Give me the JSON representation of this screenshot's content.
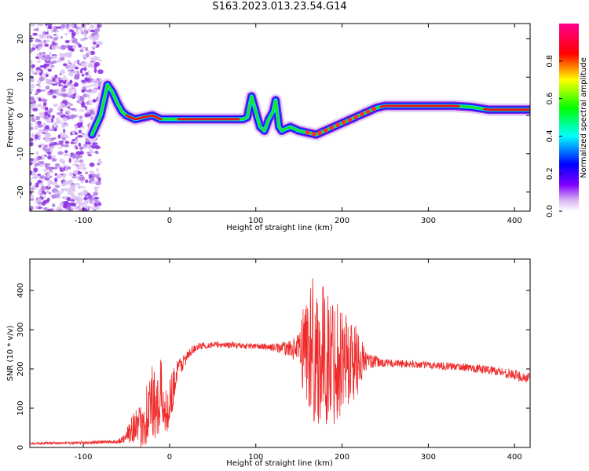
{
  "figure": {
    "title": "S163.2023.013.23.54.G14"
  },
  "chart_data": [
    {
      "type": "heatmap",
      "name": "spectrogram",
      "xlabel": "Height of straight line (km)",
      "ylabel": "Frequency (Hz)",
      "xlim": [
        -162,
        418
      ],
      "ylim": [
        -25,
        24
      ],
      "xticks": [
        -100,
        0,
        100,
        200,
        300,
        400
      ],
      "yticks": [
        -20,
        -10,
        0,
        10,
        20
      ],
      "grid": false,
      "ridge": {
        "x": [
          -90,
          -80,
          -72,
          -66,
          -60,
          -55,
          -50,
          -40,
          -30,
          -20,
          -10,
          0,
          20,
          40,
          60,
          80,
          85,
          90,
          95,
          100,
          105,
          110,
          115,
          120,
          123,
          127,
          130,
          140,
          150,
          160,
          170,
          180,
          190,
          200,
          210,
          220,
          230,
          240,
          250,
          260,
          300,
          330,
          350,
          370,
          418
        ],
        "y": [
          -5,
          0,
          8,
          6,
          3,
          1,
          0,
          -1,
          -0.5,
          0,
          -1,
          -1,
          -1,
          -1,
          -1,
          -1,
          -1,
          -0.5,
          5,
          1,
          -3,
          -4,
          -1,
          1,
          4,
          -3,
          -4,
          -3,
          -4,
          -4.5,
          -5,
          -4,
          -3,
          -2,
          -1,
          0,
          1,
          2,
          2.5,
          2.5,
          2.5,
          2.5,
          2.2,
          1.5,
          1.5
        ]
      },
      "colorbar": {
        "label": "Normalized spectral amplitude",
        "range": [
          0,
          1
        ],
        "ticks": [
          0.0,
          0.2,
          0.4,
          0.6,
          0.8
        ],
        "tick_labels": [
          "0.0",
          "0.2",
          "0.4",
          "0.6",
          "0.8"
        ],
        "colormap": [
          "#ffffff",
          "#d8b0f0",
          "#8000ff",
          "#0000ff",
          "#00ffff",
          "#00ff00",
          "#ffff00",
          "#ff0000",
          "#ff0090"
        ]
      }
    },
    {
      "type": "line",
      "name": "snr",
      "xlabel": "Height of straight line (km)",
      "ylabel": "SNR (10 * v/v)",
      "xlim": [
        -162,
        418
      ],
      "ylim": [
        0,
        480
      ],
      "xticks": [
        -100,
        0,
        100,
        200,
        300,
        400
      ],
      "yticks": [
        0,
        100,
        200,
        300,
        400
      ],
      "grid": false,
      "color": "#ee2a2a",
      "envelope": {
        "x": [
          -162,
          -100,
          -60,
          -50,
          -45,
          -40,
          -35,
          -30,
          -25,
          -20,
          -15,
          -10,
          -5,
          0,
          5,
          10,
          20,
          30,
          40,
          60,
          80,
          100,
          120,
          140,
          150,
          155,
          160,
          165,
          170,
          175,
          180,
          185,
          190,
          195,
          200,
          205,
          210,
          215,
          220,
          225,
          230,
          250,
          300,
          340,
          380,
          418
        ],
        "mean": [
          10,
          12,
          15,
          25,
          50,
          60,
          40,
          80,
          90,
          120,
          70,
          150,
          80,
          120,
          160,
          200,
          230,
          255,
          260,
          262,
          260,
          258,
          255,
          252,
          250,
          255,
          255,
          250,
          240,
          235,
          230,
          225,
          225,
          230,
          230,
          225,
          220,
          220,
          220,
          225,
          220,
          215,
          210,
          205,
          195,
          175
        ],
        "amplitude": [
          3,
          4,
          5,
          15,
          40,
          50,
          60,
          80,
          90,
          100,
          90,
          80,
          60,
          60,
          50,
          30,
          15,
          10,
          8,
          8,
          8,
          8,
          10,
          20,
          40,
          120,
          160,
          200,
          190,
          180,
          180,
          170,
          170,
          160,
          140,
          130,
          120,
          100,
          80,
          40,
          20,
          10,
          10,
          10,
          12,
          15
        ]
      }
    }
  ]
}
